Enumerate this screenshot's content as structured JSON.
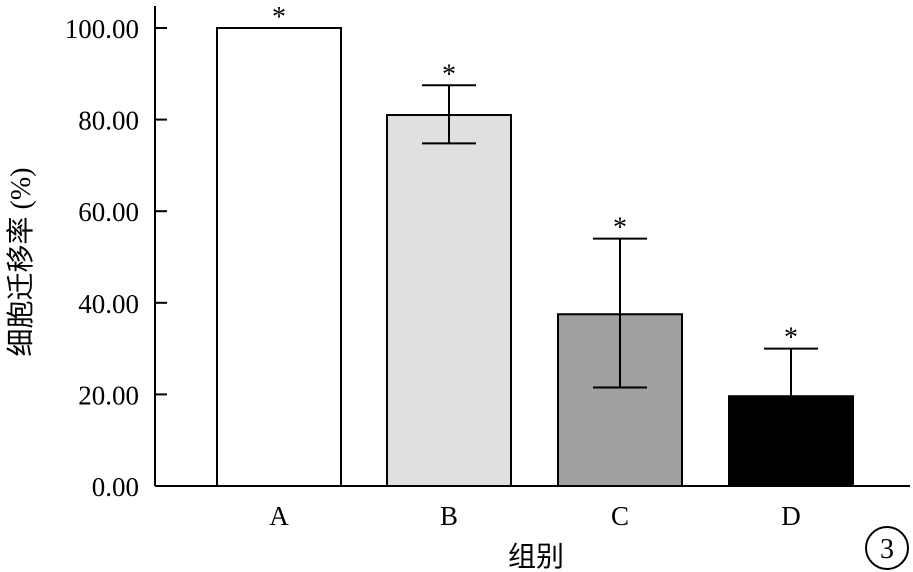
{
  "chart_data": {
    "type": "bar",
    "categories": [
      "A",
      "B",
      "C",
      "D"
    ],
    "values": [
      100.0,
      81.0,
      37.5,
      19.6
    ],
    "error_upper": [
      100.0,
      87.5,
      54.0,
      30.0
    ],
    "error_lower": [
      100.0,
      74.8,
      21.5,
      19.6
    ],
    "significance": [
      "*",
      "*",
      "*",
      "*"
    ],
    "bar_colors": [
      "#ffffff",
      "#e0e0e0",
      "#a0a0a0",
      "#000000"
    ],
    "xlabel": "组别",
    "ylabel": "细胞迁移率 (%)",
    "ylim": [
      0,
      100
    ],
    "yticks": [
      "0.00",
      "20.00",
      "40.00",
      "60.00",
      "80.00",
      "100.00"
    ],
    "grid": false,
    "panel_label": "3"
  }
}
